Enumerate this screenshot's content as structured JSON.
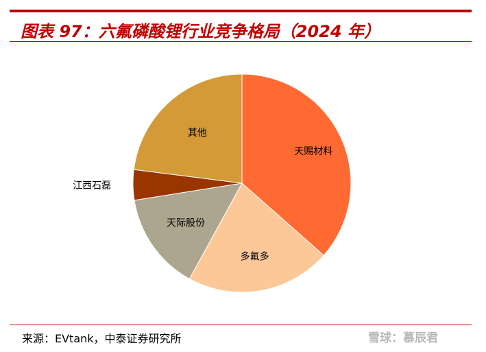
{
  "title": "图表 97：六氟磷酸锂行业竞争格局（2024 年）",
  "source": "来源：EVtank，中泰证券研究所",
  "watermark": "雪球：慕辰君",
  "colors": {
    "accent": "#c00000",
    "rule": "#c00000"
  },
  "chart_data": {
    "type": "pie",
    "title": "",
    "start_angle_deg": 0,
    "direction": "clockwise",
    "slices": [
      {
        "label": "天赐材料",
        "value": 36.5,
        "color": "#ff6a33"
      },
      {
        "label": "多氟多",
        "value": 21.5,
        "color": "#fcc898"
      },
      {
        "label": "天际股份",
        "value": 14.5,
        "color": "#aca68e"
      },
      {
        "label": "江西石磊",
        "value": 4.5,
        "color": "#9a3500"
      },
      {
        "label": "其他",
        "value": 23.0,
        "color": "#d49a37"
      }
    ]
  }
}
